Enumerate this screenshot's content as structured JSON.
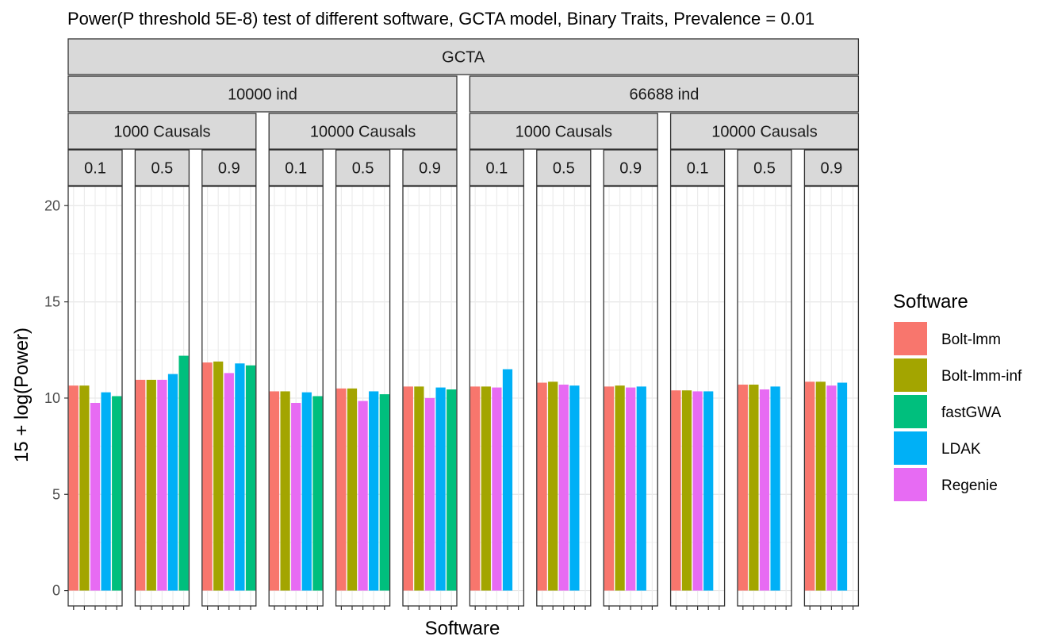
{
  "chart_data": {
    "type": "bar",
    "title": "Power(P threshold 5E-8) test of different software, GCTA model, Binary Traits, Prevalence = 0.01",
    "xlabel": "Software",
    "ylabel": "15 + log(Power)",
    "ylim": [
      -0.8,
      21
    ],
    "yticks": [
      0,
      5,
      10,
      15,
      20
    ],
    "grid": true,
    "legend_position": "right",
    "legend_title": "Software",
    "facet_strips": {
      "model": "GCTA",
      "individuals": [
        "10000 ind",
        "66688 ind"
      ],
      "causals": [
        "1000 Causals",
        "10000 Causals"
      ],
      "heritability": [
        "0.1",
        "0.5",
        "0.9"
      ]
    },
    "series": [
      {
        "name": "Bolt-lmm",
        "color": "#F8766D"
      },
      {
        "name": "Bolt-lmm-inf",
        "color": "#A3A500"
      },
      {
        "name": "fastGWA",
        "color": "#00BF7D"
      },
      {
        "name": "LDAK",
        "color": "#00B0F6"
      },
      {
        "name": "Regenie",
        "color": "#E76BF3"
      }
    ],
    "bar_order": [
      "Bolt-lmm",
      "Bolt-lmm-inf",
      "Regenie",
      "LDAK",
      "fastGWA"
    ],
    "panels": [
      {
        "ind": "10000 ind",
        "causals": "1000 Causals",
        "h": "0.1",
        "values": {
          "Bolt-lmm": 10.65,
          "Bolt-lmm-inf": 10.65,
          "Regenie": 9.75,
          "LDAK": 10.3,
          "fastGWA": 10.1
        }
      },
      {
        "ind": "10000 ind",
        "causals": "1000 Causals",
        "h": "0.5",
        "values": {
          "Bolt-lmm": 10.95,
          "Bolt-lmm-inf": 10.95,
          "Regenie": 10.95,
          "LDAK": 11.25,
          "fastGWA": 12.2
        }
      },
      {
        "ind": "10000 ind",
        "causals": "1000 Causals",
        "h": "0.9",
        "values": {
          "Bolt-lmm": 11.85,
          "Bolt-lmm-inf": 11.9,
          "Regenie": 11.3,
          "LDAK": 11.8,
          "fastGWA": 11.7
        }
      },
      {
        "ind": "10000 ind",
        "causals": "10000 Causals",
        "h": "0.1",
        "values": {
          "Bolt-lmm": 10.35,
          "Bolt-lmm-inf": 10.35,
          "Regenie": 9.75,
          "LDAK": 10.3,
          "fastGWA": 10.1
        }
      },
      {
        "ind": "10000 ind",
        "causals": "10000 Causals",
        "h": "0.5",
        "values": {
          "Bolt-lmm": 10.5,
          "Bolt-lmm-inf": 10.5,
          "Regenie": 9.85,
          "LDAK": 10.35,
          "fastGWA": 10.2
        }
      },
      {
        "ind": "10000 ind",
        "causals": "10000 Causals",
        "h": "0.9",
        "values": {
          "Bolt-lmm": 10.6,
          "Bolt-lmm-inf": 10.6,
          "Regenie": 10.0,
          "LDAK": 10.55,
          "fastGWA": 10.45
        }
      },
      {
        "ind": "66688 ind",
        "causals": "1000 Causals",
        "h": "0.1",
        "values": {
          "Bolt-lmm": 10.6,
          "Bolt-lmm-inf": 10.6,
          "Regenie": 10.55,
          "LDAK": 11.5
        }
      },
      {
        "ind": "66688 ind",
        "causals": "1000 Causals",
        "h": "0.5",
        "values": {
          "Bolt-lmm": 10.8,
          "Bolt-lmm-inf": 10.85,
          "Regenie": 10.7,
          "LDAK": 10.65
        }
      },
      {
        "ind": "66688 ind",
        "causals": "1000 Causals",
        "h": "0.9",
        "values": {
          "Bolt-lmm": 10.6,
          "Bolt-lmm-inf": 10.65,
          "Regenie": 10.55,
          "LDAK": 10.6
        }
      },
      {
        "ind": "66688 ind",
        "causals": "10000 Causals",
        "h": "0.1",
        "values": {
          "Bolt-lmm": 10.4,
          "Bolt-lmm-inf": 10.4,
          "Regenie": 10.35,
          "LDAK": 10.35
        }
      },
      {
        "ind": "66688 ind",
        "causals": "10000 Causals",
        "h": "0.5",
        "values": {
          "Bolt-lmm": 10.7,
          "Bolt-lmm-inf": 10.7,
          "Regenie": 10.45,
          "LDAK": 10.6
        }
      },
      {
        "ind": "66688 ind",
        "causals": "10000 Causals",
        "h": "0.9",
        "values": {
          "Bolt-lmm": 10.85,
          "Bolt-lmm-inf": 10.85,
          "Regenie": 10.65,
          "LDAK": 10.8
        }
      }
    ]
  }
}
